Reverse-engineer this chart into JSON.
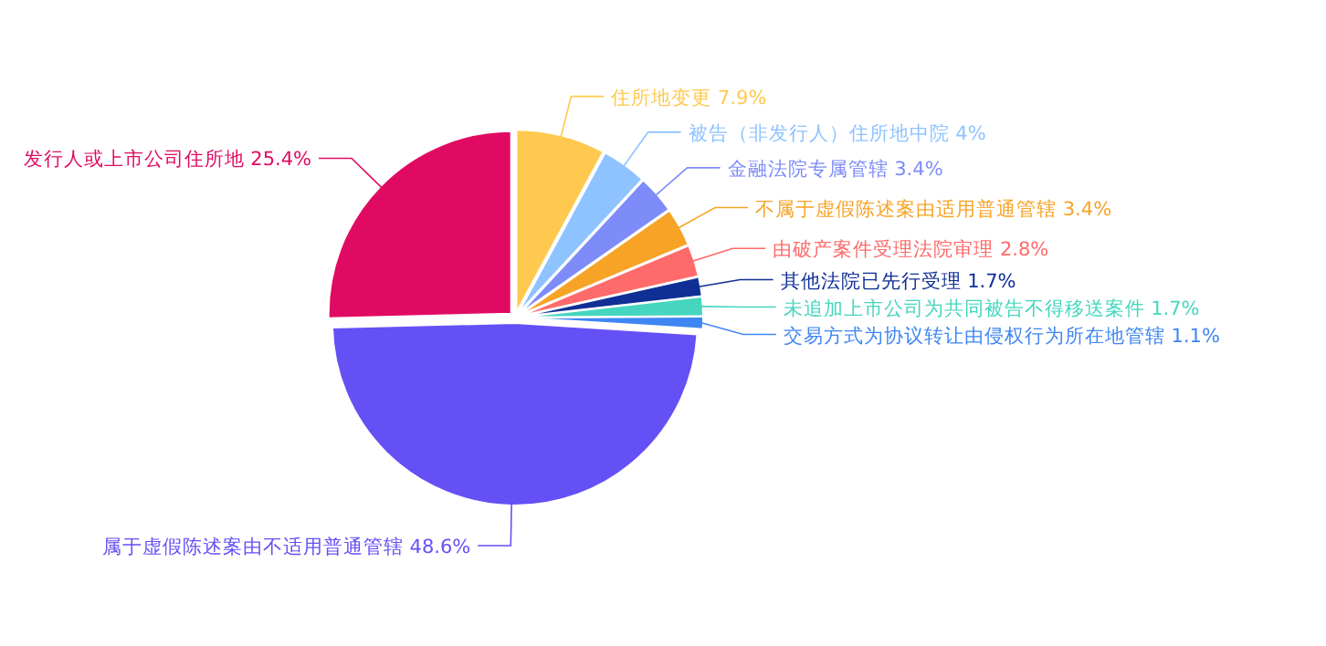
{
  "chart_data": {
    "type": "pie",
    "categories": [
      "住所地变更",
      "被告（非发行人）住所地中院",
      "金融法院专属管辖",
      "不属于虚假陈述案由适用普通管辖",
      "由破产案件受理法院审理",
      "其他法院已先行受理",
      "未追加上市公司为共同被告不得移送案件",
      "交易方式为协议转让由侵权行为所在地管辖",
      "属于虚假陈述案由不适用普通管辖",
      "发行人或上市公司住所地"
    ],
    "values": [
      7.9,
      4,
      3.4,
      3.4,
      2.8,
      1.7,
      1.7,
      1.1,
      48.6,
      25.4
    ],
    "value_labels": [
      "7.9%",
      "4%",
      "3.4%",
      "3.4%",
      "2.8%",
      "1.7%",
      "1.7%",
      "1.1%",
      "48.6%",
      "25.4%"
    ],
    "colors": [
      "#ffc94f",
      "#8ec3ff",
      "#7d8cf8",
      "#f7a325",
      "#ff6a6a",
      "#0f2f95",
      "#46d6bf",
      "#3f86f2",
      "#6550f5",
      "#e10a62"
    ]
  }
}
